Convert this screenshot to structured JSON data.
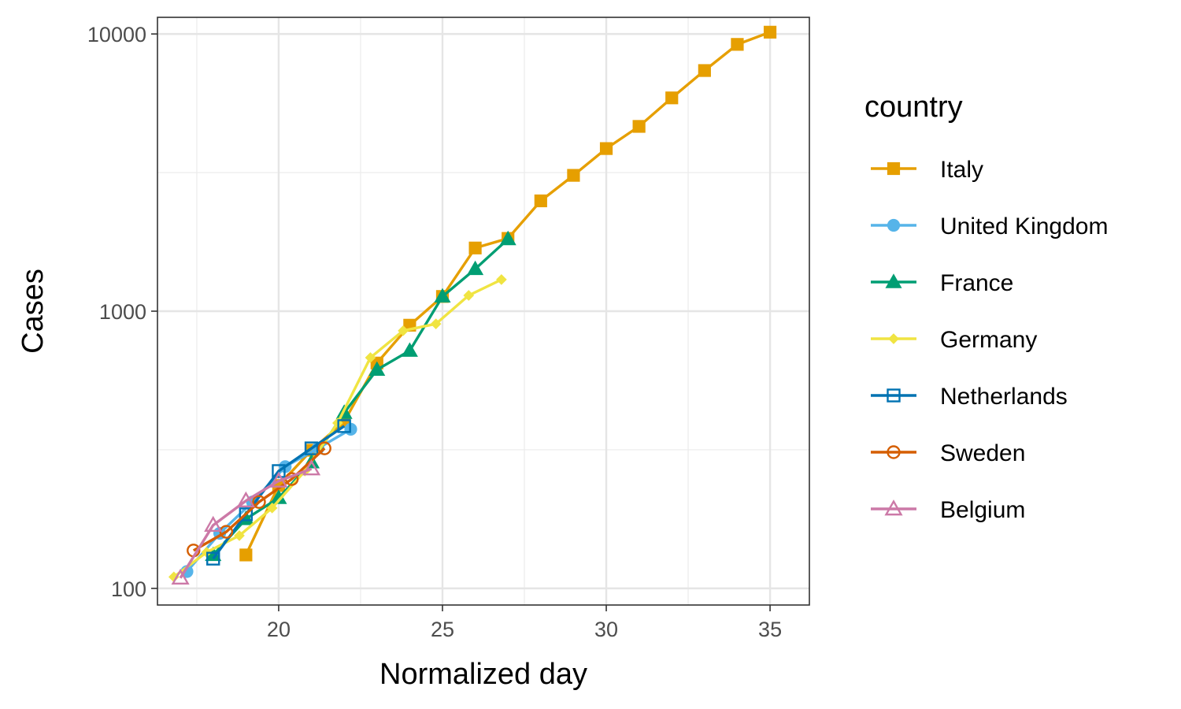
{
  "chart_data": {
    "type": "line",
    "xlabel": "Normalized day",
    "ylabel": "Cases",
    "xlim": [
      16.3,
      36.2
    ],
    "ylim_log10": [
      1.94,
      4.06
    ],
    "y_scale": "log10",
    "x_ticks": [
      20,
      25,
      30,
      35
    ],
    "x_tick_labels": [
      "20",
      "25",
      "30",
      "35"
    ],
    "y_ticks": [
      100,
      1000,
      10000
    ],
    "y_tick_labels": [
      "100",
      "1000",
      "10000"
    ],
    "grid": true,
    "legend_title": "country",
    "legend_position": "right",
    "series": [
      {
        "name": "Italy",
        "color": "#E69F00",
        "marker": "square-filled",
        "points": [
          [
            19,
            132
          ],
          [
            20,
            235
          ],
          [
            21,
            315
          ],
          [
            22,
            400
          ],
          [
            23,
            650
          ],
          [
            24,
            890
          ],
          [
            25,
            1130
          ],
          [
            26,
            1690
          ],
          [
            27,
            1830
          ],
          [
            28,
            2500
          ],
          [
            29,
            3090
          ],
          [
            30,
            3860
          ],
          [
            31,
            4640
          ],
          [
            32,
            5880
          ],
          [
            33,
            7380
          ],
          [
            34,
            9170
          ],
          [
            35,
            10150
          ]
        ]
      },
      {
        "name": "United Kingdom",
        "color": "#56B4E9",
        "marker": "circle-filled",
        "points": [
          [
            17.2,
            115
          ],
          [
            18.2,
            158
          ],
          [
            19.2,
            205
          ],
          [
            20.2,
            275
          ],
          [
            21.2,
            320
          ],
          [
            22.2,
            375
          ]
        ]
      },
      {
        "name": "France",
        "color": "#009E73",
        "marker": "triangle-filled",
        "points": [
          [
            18,
            132
          ],
          [
            19,
            178
          ],
          [
            20,
            212
          ],
          [
            21,
            285
          ],
          [
            22,
            430
          ],
          [
            23,
            615
          ],
          [
            24,
            720
          ],
          [
            25,
            1130
          ],
          [
            26,
            1420
          ],
          [
            27,
            1820
          ]
        ]
      },
      {
        "name": "Germany",
        "color": "#F0E442",
        "marker": "diamond-filled",
        "points": [
          [
            16.8,
            110
          ],
          [
            17.8,
            135
          ],
          [
            18.8,
            155
          ],
          [
            19.8,
            195
          ],
          [
            20.8,
            265
          ],
          [
            21.8,
            395
          ],
          [
            22.8,
            680
          ],
          [
            23.8,
            850
          ],
          [
            24.8,
            900
          ],
          [
            25.8,
            1140
          ],
          [
            26.8,
            1300
          ]
        ]
      },
      {
        "name": "Netherlands",
        "color": "#0072B2",
        "marker": "square-open",
        "points": [
          [
            18,
            128
          ],
          [
            19,
            185
          ],
          [
            20,
            265
          ],
          [
            21,
            320
          ],
          [
            22,
            385
          ]
        ]
      },
      {
        "name": "Sweden",
        "color": "#D55E00",
        "marker": "circle-open",
        "points": [
          [
            17.4,
            137
          ],
          [
            18.4,
            160
          ],
          [
            19.4,
            205
          ],
          [
            20.4,
            248
          ],
          [
            21.4,
            320
          ]
        ]
      },
      {
        "name": "Belgium",
        "color": "#CC79A7",
        "marker": "triangle-open",
        "points": [
          [
            17,
            109
          ],
          [
            18,
            169
          ],
          [
            19,
            207
          ],
          [
            20,
            244
          ],
          [
            21,
            270
          ]
        ]
      }
    ]
  }
}
